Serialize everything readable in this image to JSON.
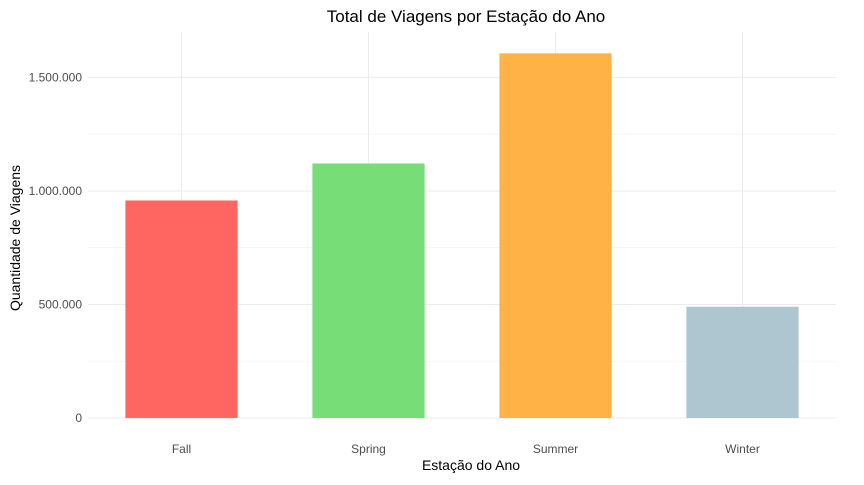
{
  "chart_data": {
    "type": "bar",
    "title": "Total de Viagens por Estação do Ano",
    "xlabel": "Estação do Ano",
    "ylabel": "Quantidade de Viagens",
    "categories": [
      "Fall",
      "Spring",
      "Summer",
      "Winter"
    ],
    "values": [
      958000,
      1121000,
      1606000,
      490000
    ],
    "colors": [
      "#ff6661",
      "#77dd77",
      "#ffb347",
      "#aec6cf"
    ],
    "ylim": [
      0,
      1700000
    ],
    "yticks": [
      0,
      500000,
      1000000,
      1500000
    ],
    "ytick_labels": [
      "0",
      "500.000",
      "1.000.000",
      "1.500.000"
    ],
    "grid": true,
    "legend": "none"
  }
}
